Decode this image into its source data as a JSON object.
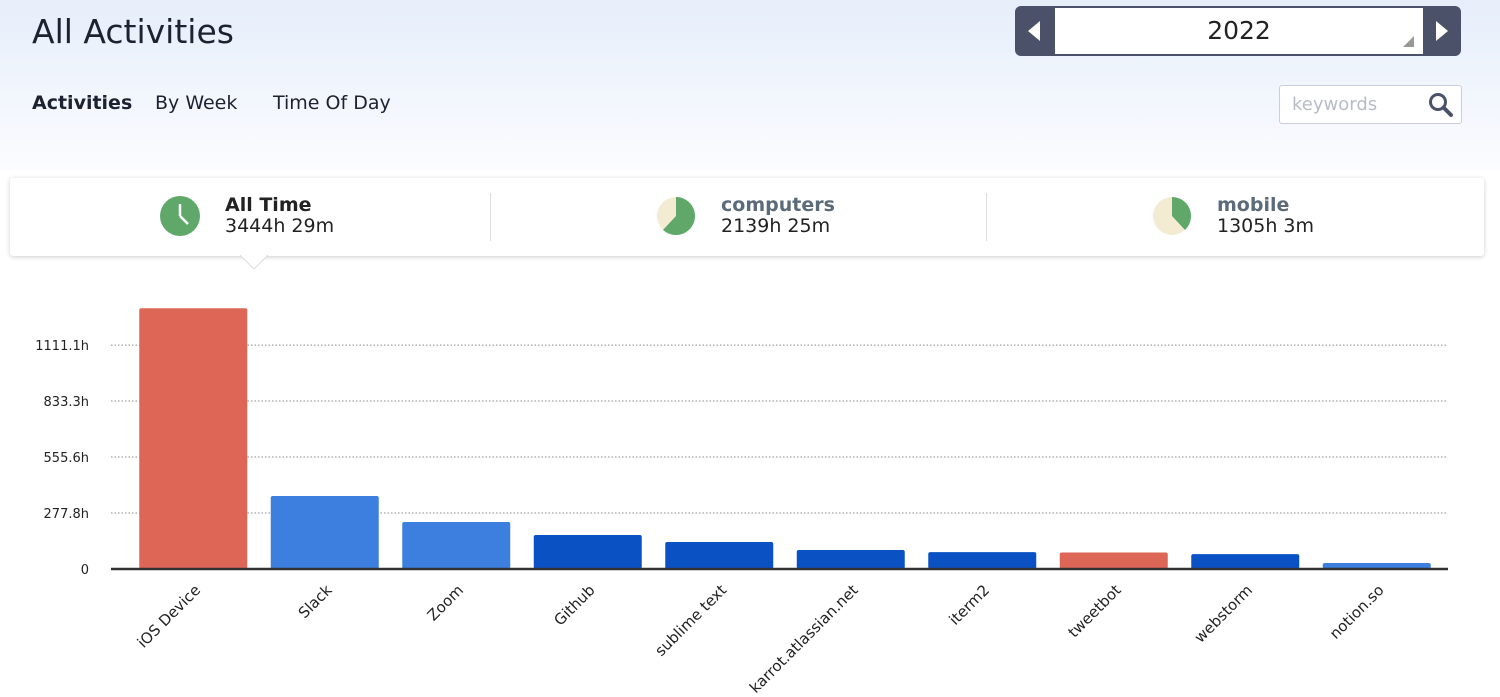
{
  "header": {
    "title": "All Activities",
    "year": "2022",
    "search_placeholder": "keywords",
    "tabs": [
      "Activities",
      "By Week",
      "Time Of Day"
    ]
  },
  "stats": [
    {
      "name": "All Time",
      "value": "3444h 29m"
    },
    {
      "name": "computers",
      "value": "2139h 25m"
    },
    {
      "name": "mobile",
      "value": "1305h 3m"
    }
  ],
  "chart_data": {
    "type": "bar",
    "categories": [
      "iOS Device",
      "Slack",
      "Zoom",
      "Github",
      "sublime text",
      "karrot.atlassian.net",
      "iterm2",
      "tweetbot",
      "webstorm",
      "notion.so"
    ],
    "values": [
      1294,
      362,
      233,
      169,
      134,
      94,
      84,
      82,
      74,
      30
    ],
    "colors": [
      "#de6656",
      "#3d7fdf",
      "#3d7fdf",
      "#0a52c4",
      "#0a52c4",
      "#0a52c4",
      "#0a52c4",
      "#de6656",
      "#0a52c4",
      "#3d7fdf"
    ],
    "ylim": [
      0,
      1300
    ],
    "yticks": [
      0,
      {
        "value": 277.8,
        "label": "277.8h"
      },
      {
        "value": 555.6,
        "label": "555.6h"
      },
      {
        "value": 833.3,
        "label": "833.3h"
      },
      {
        "value": 1111.1,
        "label": "1111.1h"
      }
    ],
    "grid": true
  }
}
